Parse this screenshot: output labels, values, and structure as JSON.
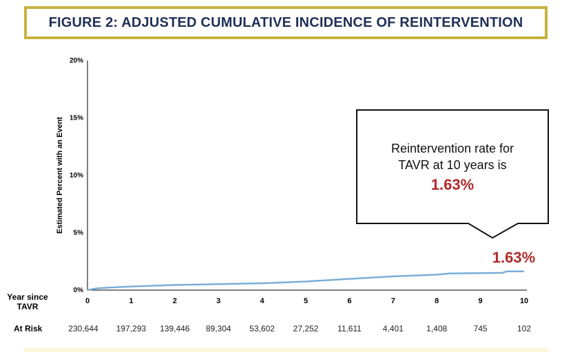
{
  "title": "FIGURE 2: ADJUSTED CUMULATIVE INCIDENCE OF REINTERVENTION",
  "colors": {
    "title_border": "#c8b23e",
    "title_text": "#1f2f56",
    "curve": "#7aaed6",
    "highlight": "#b02a2a"
  },
  "callout": {
    "line1": "Reintervention rate for",
    "line2": "TAVR at 10 years is",
    "value": "1.63%"
  },
  "at_risk_label": "At Risk",
  "x_axis_label_line1": "Year since",
  "x_axis_label_line2": "TAVR",
  "chart_data": {
    "type": "line",
    "title": "FIGURE 2: ADJUSTED CUMULATIVE INCIDENCE OF REINTERVENTION",
    "xlabel": "Year since TAVR",
    "ylabel": "Estimated Percent with an Event",
    "xlim": [
      0,
      10
    ],
    "ylim": [
      0,
      20
    ],
    "x_ticks": [
      "0",
      "1",
      "2",
      "3",
      "4",
      "5",
      "6",
      "7",
      "8",
      "9",
      "10"
    ],
    "y_ticks": [
      "0%",
      "5%",
      "10%",
      "15%",
      "20%"
    ],
    "grid": false,
    "series": [
      {
        "x": [
          0,
          0.2,
          0.5,
          1,
          2,
          3,
          4,
          5,
          6,
          7,
          8,
          8.3,
          9,
          9.5,
          9.6,
          10
        ],
        "values": [
          0,
          0.15,
          0.22,
          0.32,
          0.45,
          0.52,
          0.6,
          0.75,
          0.98,
          1.2,
          1.35,
          1.45,
          1.48,
          1.5,
          1.63,
          1.63
        ]
      }
    ],
    "end_label": "1.63%",
    "at_risk": [
      "230,644",
      "197,293",
      "139,446",
      "89,304",
      "53,602",
      "27,252",
      "11,611",
      "4,401",
      "1,408",
      "745",
      "102"
    ]
  }
}
